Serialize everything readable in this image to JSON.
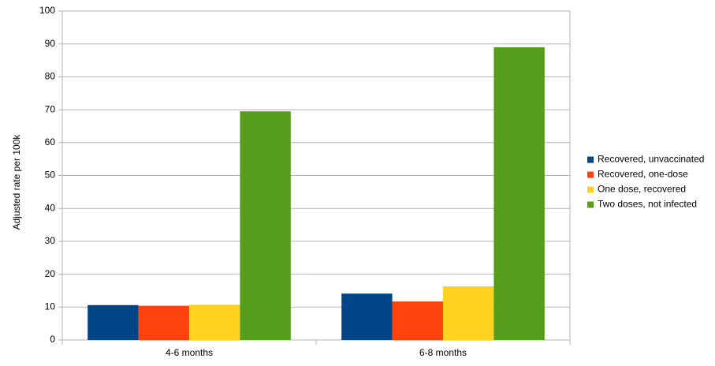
{
  "chart_data": {
    "type": "bar",
    "y_label": "Adjusted rate per 100k",
    "categories": [
      "4-6 months",
      "6-8 months"
    ],
    "series": [
      {
        "name": "Recovered, unvaccinated",
        "color": "#004586",
        "values": [
          10.6,
          14.1
        ]
      },
      {
        "name": "Recovered, one-dose",
        "color": "#ff420e",
        "values": [
          10.4,
          11.7
        ]
      },
      {
        "name": "One dose, recovered",
        "color": "#ffd320",
        "values": [
          10.7,
          16.3
        ]
      },
      {
        "name": "Two doses, not infected",
        "color": "#579d1c",
        "values": [
          69.5,
          89
        ]
      }
    ],
    "ylim": [
      0,
      100
    ],
    "yticks": [
      0,
      10,
      20,
      30,
      40,
      50,
      60,
      70,
      80,
      90,
      100
    ],
    "grid": true,
    "legend": "right"
  }
}
